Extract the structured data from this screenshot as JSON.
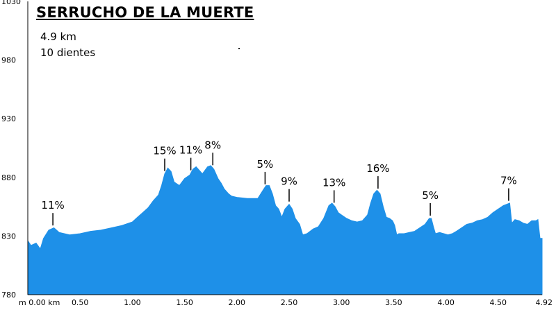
{
  "title": "SERRUCHO DE LA MUERTE",
  "distance_label": "4.9 km",
  "teeth_label": "10 dientes",
  "colors": {
    "profile_fill": "#1E90E8",
    "axis": "#000000",
    "background": "#FFFFFF"
  },
  "chart_data": {
    "type": "area",
    "title": "SERRUCHO DE LA MUERTE",
    "xlabel": "",
    "ylabel": "",
    "xlim": [
      0,
      4.92
    ],
    "ylim": [
      780,
      1030
    ],
    "grid": false,
    "y_ticks": [
      "780",
      "830",
      "880",
      "930",
      "980",
      "1030"
    ],
    "x_ticks": [
      {
        "value": 0.0,
        "label": "m 0.00 km"
      },
      {
        "value": 0.5,
        "label": "0.50"
      },
      {
        "value": 1.0,
        "label": "1.00"
      },
      {
        "value": 1.5,
        "label": "1.50"
      },
      {
        "value": 2.0,
        "label": "2.00"
      },
      {
        "value": 2.5,
        "label": "2.50"
      },
      {
        "value": 3.0,
        "label": "3.00"
      },
      {
        "value": 3.5,
        "label": "3.50"
      },
      {
        "value": 4.0,
        "label": "4.00"
      },
      {
        "value": 4.5,
        "label": "4.50"
      },
      {
        "value": 4.92,
        "label": "4.92"
      }
    ],
    "profile": {
      "x": [
        0.0,
        0.03,
        0.08,
        0.12,
        0.15,
        0.2,
        0.25,
        0.3,
        0.35,
        0.4,
        0.5,
        0.6,
        0.7,
        0.8,
        0.9,
        1.0,
        1.05,
        1.1,
        1.15,
        1.2,
        1.25,
        1.28,
        1.31,
        1.34,
        1.37,
        1.4,
        1.45,
        1.5,
        1.55,
        1.58,
        1.61,
        1.64,
        1.67,
        1.72,
        1.75,
        1.78,
        1.8,
        1.82,
        1.85,
        1.88,
        1.92,
        1.95,
        2.0,
        2.1,
        2.15,
        2.2,
        2.25,
        2.28,
        2.31,
        2.34,
        2.37,
        2.4,
        2.43,
        2.46,
        2.5,
        2.53,
        2.56,
        2.6,
        2.63,
        2.67,
        2.7,
        2.73,
        2.78,
        2.83,
        2.88,
        2.91,
        2.94,
        2.97,
        3.0,
        3.05,
        3.1,
        3.15,
        3.2,
        3.25,
        3.28,
        3.31,
        3.34,
        3.37,
        3.4,
        3.43,
        3.46,
        3.49,
        3.51,
        3.53,
        3.55,
        3.6,
        3.65,
        3.7,
        3.75,
        3.8,
        3.84,
        3.86,
        3.88,
        3.9,
        3.94,
        3.98,
        4.02,
        4.06,
        4.1,
        4.15,
        4.2,
        4.25,
        4.3,
        4.35,
        4.4,
        4.45,
        4.5,
        4.55,
        4.58,
        4.61,
        4.63,
        4.66,
        4.7,
        4.74,
        4.78,
        4.82,
        4.86,
        4.88,
        4.9,
        4.92
      ],
      "y": [
        826,
        822,
        824,
        819,
        828,
        835,
        837,
        833,
        832,
        831,
        832,
        834,
        835,
        837,
        839,
        842,
        846,
        850,
        854,
        860,
        865,
        873,
        883,
        888,
        885,
        876,
        873,
        879,
        882,
        887,
        889,
        886,
        883,
        889,
        890,
        887,
        883,
        879,
        875,
        870,
        866,
        864,
        863,
        862,
        862,
        862,
        869,
        873,
        873,
        866,
        856,
        853,
        846,
        853,
        857,
        853,
        845,
        840,
        831,
        832,
        834,
        836,
        838,
        845,
        856,
        858,
        855,
        850,
        848,
        845,
        843,
        842,
        843,
        848,
        858,
        866,
        869,
        866,
        855,
        846,
        845,
        843,
        839,
        831,
        832,
        832,
        833,
        834,
        837,
        840,
        845,
        845,
        838,
        832,
        833,
        832,
        831,
        832,
        834,
        837,
        840,
        841,
        843,
        844,
        846,
        850,
        853,
        856,
        857,
        858,
        841,
        844,
        843,
        841,
        840,
        843,
        843,
        844,
        828,
        828
      ]
    },
    "annotations": [
      {
        "label": "11%",
        "x": 0.24
      },
      {
        "label": "15%",
        "x": 1.31
      },
      {
        "label": "11%",
        "x": 1.56
      },
      {
        "label": "8%",
        "x": 1.77
      },
      {
        "label": "5%",
        "x": 2.27
      },
      {
        "label": "9%",
        "x": 2.5
      },
      {
        "label": "13%",
        "x": 2.93
      },
      {
        "label": "16%",
        "x": 3.35
      },
      {
        "label": "5%",
        "x": 3.85
      },
      {
        "label": "7%",
        "x": 4.6
      }
    ]
  }
}
